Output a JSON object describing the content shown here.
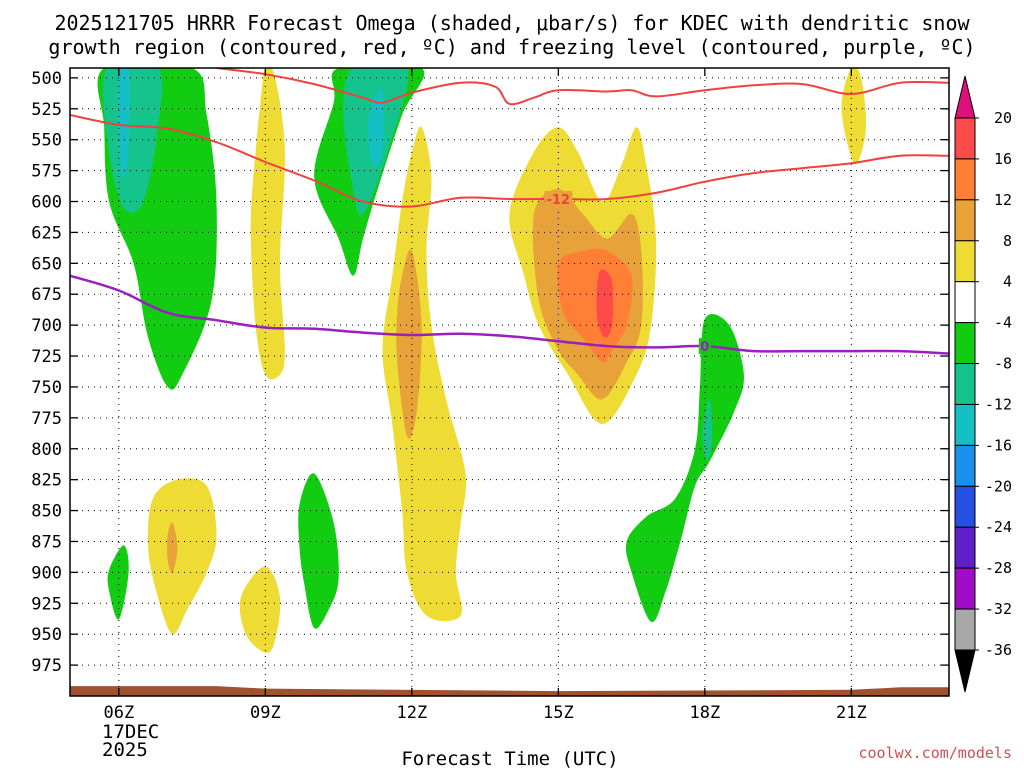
{
  "chart_data": {
    "type": "time-height cross section",
    "title_line1": "2025121705 HRRR Forecast Omega (shaded, μbar/s) for KDEC with dendritic snow",
    "title_line2": "growth region (contoured, red, ºC) and freezing level (contoured, purple, ºC)",
    "xlabel": "Forecast Time (UTC)",
    "x_ticks": [
      "06Z",
      "09Z",
      "12Z",
      "15Z",
      "18Z",
      "21Z"
    ],
    "x_hours": [
      6,
      9,
      12,
      15,
      18,
      21
    ],
    "xlim": [
      5.0,
      23.0
    ],
    "date_label_line1": "17DEC",
    "date_label_line2": "2025",
    "y_ticks": [
      500,
      525,
      550,
      575,
      600,
      625,
      650,
      675,
      700,
      725,
      750,
      775,
      800,
      825,
      850,
      875,
      900,
      925,
      950,
      975
    ],
    "ylim_hPa": [
      492,
      1000
    ],
    "colorbar_labels": [
      "20",
      "16",
      "12",
      "8",
      "4",
      "-4",
      "-8",
      "-12",
      "-16",
      "-20",
      "-24",
      "-28",
      "-32",
      "-36"
    ],
    "colorbar_colors": [
      "#ff4a4a",
      "#ff7f36",
      "#e8a23a",
      "#eedc35",
      "#ffffff",
      "#12cc12",
      "#14c48c",
      "#14c0c4",
      "#1890ee",
      "#2650e4",
      "#6020c8",
      "#a00cc8",
      "#a8a8a8"
    ],
    "colorbar_top_color": "#e0107a",
    "colorbar_bottom_color": "#000000",
    "omega_regions": [
      {
        "level": -4,
        "color": "#12cc12",
        "points": [
          [
            5.7,
            492
          ],
          [
            7.5,
            492
          ],
          [
            7.8,
            530
          ],
          [
            8.0,
            600
          ],
          [
            7.9,
            680
          ],
          [
            7.3,
            740
          ],
          [
            7.0,
            750
          ],
          [
            6.6,
            710
          ],
          [
            6.3,
            650
          ],
          [
            5.8,
            600
          ],
          [
            5.7,
            540
          ]
        ]
      },
      {
        "level": -8,
        "color": "#14c48c",
        "points": [
          [
            5.75,
            492
          ],
          [
            6.8,
            492
          ],
          [
            6.8,
            540
          ],
          [
            6.5,
            600
          ],
          [
            6.1,
            605
          ],
          [
            5.8,
            560
          ]
        ]
      },
      {
        "level": -12,
        "color": "#14c0c4",
        "points": [
          [
            6.0,
            492
          ],
          [
            6.2,
            492
          ],
          [
            6.2,
            560
          ],
          [
            6.1,
            580
          ],
          [
            6.0,
            560
          ]
        ]
      },
      {
        "level": -4,
        "color": "#12cc12",
        "points": [
          [
            10.5,
            492
          ],
          [
            12.2,
            492
          ],
          [
            11.8,
            530
          ],
          [
            11.3,
            590
          ],
          [
            11.0,
            630
          ],
          [
            10.8,
            660
          ],
          [
            10.5,
            630
          ],
          [
            10.0,
            580
          ],
          [
            10.4,
            520
          ]
        ]
      },
      {
        "level": -8,
        "color": "#14c48c",
        "points": [
          [
            10.8,
            492
          ],
          [
            11.9,
            492
          ],
          [
            11.5,
            560
          ],
          [
            11.0,
            610
          ],
          [
            10.8,
            590
          ],
          [
            10.6,
            530
          ]
        ]
      },
      {
        "level": -12,
        "color": "#14c0c4",
        "points": [
          [
            11.2,
            520
          ],
          [
            11.4,
            510
          ],
          [
            11.4,
            560
          ],
          [
            11.2,
            570
          ],
          [
            11.1,
            540
          ]
        ]
      },
      {
        "level": -4,
        "color": "#12cc12",
        "points": [
          [
            5.8,
            898
          ],
          [
            6.1,
            878
          ],
          [
            6.2,
            900
          ],
          [
            6.0,
            938
          ],
          [
            5.8,
            915
          ]
        ]
      },
      {
        "level": -4,
        "color": "#12cc12",
        "points": [
          [
            9.7,
            845
          ],
          [
            10.0,
            820
          ],
          [
            10.4,
            860
          ],
          [
            10.5,
            905
          ],
          [
            10.3,
            930
          ],
          [
            10.0,
            945
          ],
          [
            9.8,
            910
          ],
          [
            9.7,
            880
          ]
        ]
      },
      {
        "level": -4,
        "color": "#12cc12",
        "points": [
          [
            17.5,
            875
          ],
          [
            17.8,
            830
          ],
          [
            18.1,
            810
          ],
          [
            18.6,
            770
          ],
          [
            18.8,
            740
          ],
          [
            18.5,
            700
          ],
          [
            18.0,
            695
          ],
          [
            17.9,
            750
          ],
          [
            17.8,
            800
          ],
          [
            17.4,
            840
          ],
          [
            16.8,
            855
          ],
          [
            16.4,
            875
          ],
          [
            16.5,
            900
          ],
          [
            16.9,
            940
          ],
          [
            17.2,
            915
          ]
        ]
      },
      {
        "level": -8,
        "color": "#14c48c",
        "points": [
          [
            18.0,
            775
          ],
          [
            18.1,
            760
          ],
          [
            18.15,
            790
          ],
          [
            18.05,
            810
          ],
          [
            17.95,
            790
          ]
        ]
      },
      {
        "level": 4,
        "color": "#eedc35",
        "points": [
          [
            9.0,
            492
          ],
          [
            9.2,
            500
          ],
          [
            9.4,
            560
          ],
          [
            9.3,
            650
          ],
          [
            9.4,
            720
          ],
          [
            9.3,
            740
          ],
          [
            9.0,
            740
          ],
          [
            8.8,
            700
          ],
          [
            8.7,
            620
          ],
          [
            8.8,
            560
          ],
          [
            8.9,
            520
          ]
        ]
      },
      {
        "level": 4,
        "color": "#eedc35",
        "points": [
          [
            12.0,
            560
          ],
          [
            12.2,
            540
          ],
          [
            12.4,
            580
          ],
          [
            12.3,
            640
          ],
          [
            12.4,
            700
          ],
          [
            12.7,
            760
          ],
          [
            13.1,
            820
          ],
          [
            13.0,
            860
          ],
          [
            12.9,
            900
          ],
          [
            13.0,
            935
          ],
          [
            12.3,
            935
          ],
          [
            11.9,
            900
          ],
          [
            11.8,
            850
          ],
          [
            11.6,
            780
          ],
          [
            11.4,
            720
          ],
          [
            11.6,
            660
          ],
          [
            11.8,
            600
          ]
        ]
      },
      {
        "level": 8,
        "color": "#e8a23a",
        "points": [
          [
            11.8,
            660
          ],
          [
            12.0,
            640
          ],
          [
            12.2,
            700
          ],
          [
            12.1,
            770
          ],
          [
            11.9,
            790
          ],
          [
            11.7,
            730
          ],
          [
            11.7,
            690
          ]
        ]
      },
      {
        "level": 4,
        "color": "#eedc35",
        "points": [
          [
            14.0,
            610
          ],
          [
            14.5,
            560
          ],
          [
            15.0,
            540
          ],
          [
            15.4,
            560
          ],
          [
            15.9,
            600
          ],
          [
            16.3,
            570
          ],
          [
            16.6,
            540
          ],
          [
            16.8,
            570
          ],
          [
            17.0,
            630
          ],
          [
            16.9,
            700
          ],
          [
            16.6,
            740
          ],
          [
            15.9,
            780
          ],
          [
            15.2,
            740
          ],
          [
            14.6,
            700
          ],
          [
            14.3,
            660
          ]
        ]
      },
      {
        "level": 8,
        "color": "#e8a23a",
        "points": [
          [
            14.5,
            610
          ],
          [
            15.0,
            590
          ],
          [
            15.5,
            610
          ],
          [
            16.0,
            630
          ],
          [
            16.5,
            610
          ],
          [
            16.7,
            640
          ],
          [
            16.7,
            700
          ],
          [
            16.4,
            730
          ],
          [
            15.9,
            760
          ],
          [
            15.4,
            740
          ],
          [
            15.0,
            720
          ],
          [
            14.6,
            680
          ]
        ]
      },
      {
        "level": 12,
        "color": "#ff7f36",
        "points": [
          [
            15.0,
            650
          ],
          [
            15.5,
            640
          ],
          [
            16.0,
            640
          ],
          [
            16.5,
            660
          ],
          [
            16.4,
            700
          ],
          [
            16.1,
            720
          ],
          [
            15.9,
            730
          ],
          [
            15.5,
            710
          ],
          [
            15.1,
            690
          ]
        ]
      },
      {
        "level": 16,
        "color": "#ff4a4a",
        "points": [
          [
            15.8,
            665
          ],
          [
            15.9,
            655
          ],
          [
            16.1,
            665
          ],
          [
            16.1,
            700
          ],
          [
            15.95,
            710
          ],
          [
            15.8,
            695
          ]
        ]
      },
      {
        "level": 4,
        "color": "#eedc35",
        "points": [
          [
            6.7,
            840
          ],
          [
            7.2,
            825
          ],
          [
            7.8,
            830
          ],
          [
            8.0,
            870
          ],
          [
            7.8,
            900
          ],
          [
            7.4,
            930
          ],
          [
            7.1,
            950
          ],
          [
            6.8,
            920
          ],
          [
            6.6,
            880
          ]
        ]
      },
      {
        "level": 8,
        "color": "#e8a23a",
        "points": [
          [
            7.0,
            870
          ],
          [
            7.1,
            860
          ],
          [
            7.2,
            880
          ],
          [
            7.1,
            900
          ],
          [
            7.0,
            890
          ]
        ]
      },
      {
        "level": 4,
        "color": "#eedc35",
        "points": [
          [
            8.5,
            920
          ],
          [
            9.0,
            895
          ],
          [
            9.3,
            920
          ],
          [
            9.2,
            955
          ],
          [
            9.0,
            965
          ],
          [
            8.6,
            950
          ]
        ]
      },
      {
        "level": 4,
        "color": "#eedc35",
        "points": [
          [
            21.0,
            492
          ],
          [
            21.2,
            500
          ],
          [
            21.3,
            540
          ],
          [
            21.1,
            570
          ],
          [
            20.9,
            550
          ],
          [
            20.8,
            520
          ]
        ]
      }
    ],
    "dgz_contours": [
      {
        "label": "-12",
        "color": "#f04040",
        "points": [
          [
            5.0,
            530
          ],
          [
            6.0,
            538
          ],
          [
            7.0,
            541
          ],
          [
            8.0,
            552
          ],
          [
            9.0,
            568
          ],
          [
            10.0,
            583
          ],
          [
            11.0,
            600
          ],
          [
            12.0,
            604
          ],
          [
            13.0,
            597
          ],
          [
            14.0,
            598
          ],
          [
            15.0,
            598
          ],
          [
            16.0,
            598
          ],
          [
            17.0,
            593
          ],
          [
            18.0,
            584
          ],
          [
            19.0,
            577
          ],
          [
            20.0,
            573
          ],
          [
            21.0,
            569
          ],
          [
            22.0,
            563
          ],
          [
            23.0,
            563
          ]
        ]
      },
      {
        "label": "",
        "color": "#f04040",
        "points": [
          [
            8.0,
            492
          ],
          [
            9.0,
            497
          ],
          [
            10.0,
            505
          ],
          [
            11.0,
            516
          ],
          [
            11.4,
            520
          ],
          [
            12.0,
            512
          ],
          [
            13.0,
            504
          ],
          [
            13.7,
            507
          ],
          [
            14.0,
            521
          ],
          [
            14.5,
            516
          ],
          [
            15.0,
            510
          ],
          [
            16.0,
            511
          ],
          [
            16.5,
            510
          ],
          [
            17.0,
            515
          ],
          [
            18.0,
            510
          ],
          [
            19.0,
            506
          ],
          [
            20.0,
            505
          ],
          [
            21.0,
            513
          ],
          [
            22.0,
            504
          ],
          [
            23.0,
            504
          ]
        ]
      }
    ],
    "freezing_level": {
      "label": "0",
      "color": "#9b1ebe",
      "points": [
        [
          5.0,
          660
        ],
        [
          6.0,
          672
        ],
        [
          7.0,
          690
        ],
        [
          8.0,
          696
        ],
        [
          9.0,
          702
        ],
        [
          10.0,
          703
        ],
        [
          11.0,
          706
        ],
        [
          12.0,
          708
        ],
        [
          13.0,
          707
        ],
        [
          14.0,
          709
        ],
        [
          15.0,
          713
        ],
        [
          16.0,
          717
        ],
        [
          17.0,
          718
        ],
        [
          18.0,
          717
        ],
        [
          19.0,
          721
        ],
        [
          20.0,
          721
        ],
        [
          21.0,
          721
        ],
        [
          22.0,
          721
        ],
        [
          23.0,
          723
        ]
      ]
    },
    "terrain_color": "#a0522d",
    "terrain_top_hPa": [
      [
        5.0,
        992
      ],
      [
        8.0,
        992
      ],
      [
        9.0,
        994
      ],
      [
        15.0,
        996
      ],
      [
        21.0,
        995
      ],
      [
        22.0,
        993
      ],
      [
        23.0,
        993
      ]
    ]
  },
  "watermark": "coolwx.com/models",
  "watermark_color": "#d05050"
}
